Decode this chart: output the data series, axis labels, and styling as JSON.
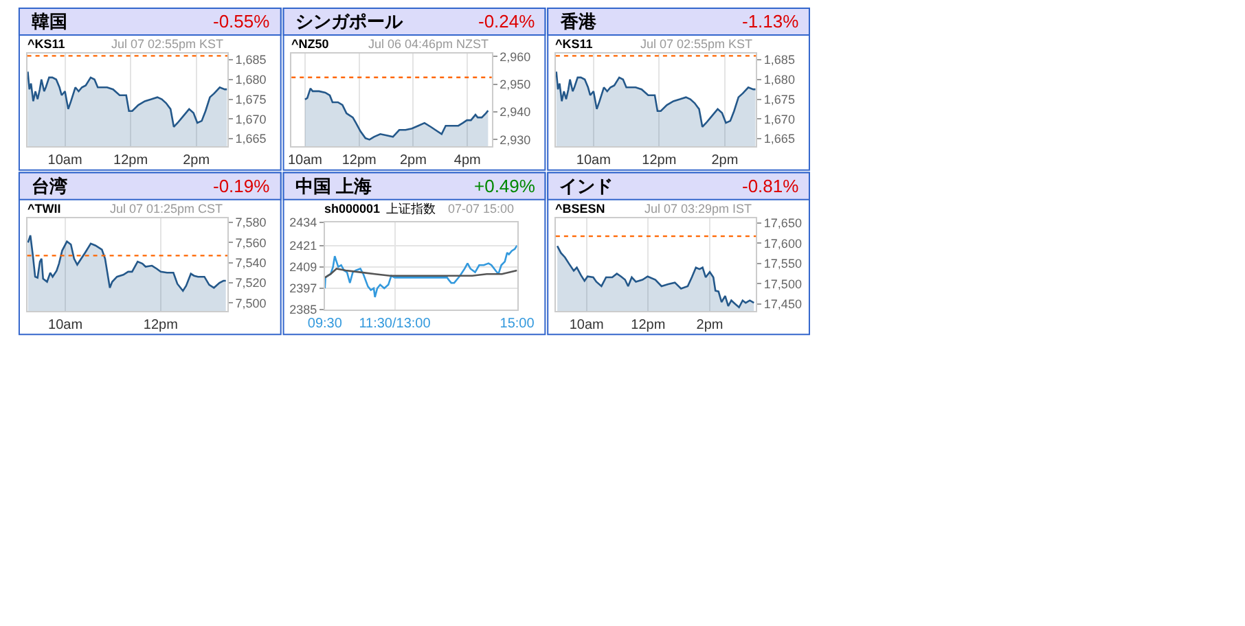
{
  "chart_data": [
    {
      "type": "area",
      "title": "韓国",
      "subtitle": "-0.55%",
      "annotations": [
        "^KS11",
        "Jul 07 02:55pm KST"
      ],
      "grid": "x",
      "xlim": [
        "--07-07T08:51",
        "--07-07T14:57"
      ],
      "xticks": [
        {
          "value": "--07-07T10:00",
          "label": "10am"
        },
        {
          "value": "--07-07T12:00",
          "label": "12pm"
        },
        {
          "value": "--07-07T14:00",
          "label": "2pm"
        }
      ],
      "ylim": [
        1663,
        1686.5
      ],
      "yticks": [
        {
          "value": 1665,
          "label": "1,665"
        },
        {
          "value": 1670,
          "label": "1,670"
        },
        {
          "value": 1675,
          "label": "1,675"
        },
        {
          "value": 1680,
          "label": "1,680"
        },
        {
          "value": 1685,
          "label": "1,685"
        }
      ],
      "ref_lines": [
        {
          "axis": "y",
          "value": 1686,
          "color": "#ff6600",
          "line_style": "dotted"
        }
      ],
      "series": [
        {
          "color": "#24588a",
          "x": [
            "--07-07T08:52",
            "--07-07T08:55",
            "--07-07T08:58",
            "--07-07T09:02",
            "--07-07T09:06",
            "--07-07T09:10",
            "--07-07T09:14",
            "--07-07T09:17",
            "--07-07T09:22",
            "--07-07T09:25",
            "--07-07T09:31",
            "--07-07T09:37",
            "--07-07T09:44",
            "--07-07T09:50",
            "--07-07T09:54",
            "--07-07T10:00",
            "--07-07T10:06",
            "--07-07T10:11",
            "--07-07T10:19",
            "--07-07T10:25",
            "--07-07T10:31",
            "--07-07T10:38",
            "--07-07T10:47",
            "--07-07T10:54",
            "--07-07T11:00",
            "--07-07T11:05",
            "--07-07T11:17",
            "--07-07T11:28",
            "--07-07T11:40",
            "--07-07T11:52",
            "--07-07T11:57",
            "--07-07T12:03",
            "--07-07T12:14",
            "--07-07T12:26",
            "--07-07T12:38",
            "--07-07T12:49",
            "--07-07T12:57",
            "--07-07T13:05",
            "--07-07T13:13",
            "--07-07T13:19",
            "--07-07T13:26",
            "--07-07T13:35",
            "--07-07T13:47",
            "--07-07T13:55",
            "--07-07T14:02",
            "--07-07T14:10",
            "--07-07T14:17",
            "--07-07T14:25",
            "--07-07T14:33",
            "--07-07T14:43",
            "--07-07T14:52",
            "--07-07T14:56"
          ],
          "values": [
            1682,
            1677.5,
            1679,
            1674.5,
            1677,
            1675,
            1677.5,
            1680,
            1677,
            1678,
            1680.5,
            1680.5,
            1680,
            1678,
            1676,
            1677,
            1672.5,
            1674.5,
            1678,
            1677,
            1678,
            1678.5,
            1680.5,
            1680,
            1678,
            1678,
            1678,
            1677.5,
            1676,
            1676,
            1672,
            1672,
            1673.5,
            1674.5,
            1675,
            1675.5,
            1675,
            1674,
            1672.5,
            1668,
            1669,
            1670.5,
            1672.5,
            1671.5,
            1669,
            1669.5,
            1672,
            1675.5,
            1676.5,
            1678,
            1677.5,
            1677.5
          ]
        }
      ]
    },
    {
      "type": "area",
      "title": "シンガポール",
      "subtitle": "-0.24%",
      "annotations": [
        "^NZ50",
        "Jul 06 04:46pm NZST"
      ],
      "grid": "x",
      "xlim": [
        "--07-06T09:30",
        "--07-06T16:54"
      ],
      "xticks": [
        {
          "value": "--07-06T10:00",
          "label": "10am"
        },
        {
          "value": "--07-06T12:00",
          "label": "12pm"
        },
        {
          "value": "--07-06T14:00",
          "label": "2pm"
        },
        {
          "value": "--07-06T16:00",
          "label": "4pm"
        }
      ],
      "ylim": [
        2927.5,
        2961
      ],
      "yticks": [
        {
          "value": 2930,
          "label": "2,930"
        },
        {
          "value": 2940,
          "label": "2,940"
        },
        {
          "value": 2950,
          "label": "2,950"
        },
        {
          "value": 2960,
          "label": "2,960"
        }
      ],
      "ref_lines": [
        {
          "axis": "y",
          "value": 2952.5,
          "color": "#ff6600",
          "line_style": "dotted"
        }
      ],
      "series": [
        {
          "color": "#24588a",
          "x": [
            "--07-06T10:00",
            "--07-06T10:05",
            "--07-06T10:12",
            "--07-06T10:17",
            "--07-06T10:31",
            "--07-06T10:45",
            "--07-06T10:55",
            "--07-06T11:01",
            "--07-06T11:13",
            "--07-06T11:23",
            "--07-06T11:32",
            "--07-06T11:46",
            "--07-06T11:53",
            "--07-06T12:03",
            "--07-06T12:14",
            "--07-06T12:23",
            "--07-06T12:33",
            "--07-06T12:47",
            "--07-06T13:01",
            "--07-06T13:15",
            "--07-06T13:29",
            "--07-06T13:43",
            "--07-06T13:57",
            "--07-06T14:11",
            "--07-06T14:25",
            "--07-06T14:40",
            "--07-06T14:49",
            "--07-06T15:03",
            "--07-06T15:12",
            "--07-06T15:26",
            "--07-06T15:40",
            "--07-06T15:50",
            "--07-06T15:59",
            "--07-06T16:08",
            "--07-06T16:18",
            "--07-06T16:23",
            "--07-06T16:32",
            "--07-06T16:41",
            "--07-06T16:46"
          ],
          "values": [
            2944.5,
            2945,
            2948.5,
            2947.5,
            2947.5,
            2947,
            2946,
            2943.5,
            2943.5,
            2942.5,
            2939.5,
            2938,
            2936,
            2933,
            2930.5,
            2930,
            2931,
            2932,
            2931.5,
            2931,
            2933.5,
            2933.5,
            2934,
            2935,
            2936,
            2934.5,
            2933.5,
            2932,
            2935,
            2935,
            2935,
            2936,
            2937,
            2937,
            2939,
            2938,
            2938,
            2939.5,
            2940.5
          ]
        }
      ]
    },
    {
      "type": "area",
      "title": "香港",
      "subtitle": "-1.13%",
      "annotations": [
        "^KS11",
        "Jul 07 02:55pm KST"
      ],
      "grid": "x",
      "xlim": [
        "--07-07T08:51",
        "--07-07T14:57"
      ],
      "xticks": [
        {
          "value": "--07-07T10:00",
          "label": "10am"
        },
        {
          "value": "--07-07T12:00",
          "label": "12pm"
        },
        {
          "value": "--07-07T14:00",
          "label": "2pm"
        }
      ],
      "ylim": [
        1663,
        1686.5
      ],
      "yticks": [
        {
          "value": 1665,
          "label": "1,665"
        },
        {
          "value": 1670,
          "label": "1,670"
        },
        {
          "value": 1675,
          "label": "1,675"
        },
        {
          "value": 1680,
          "label": "1,680"
        },
        {
          "value": 1685,
          "label": "1,685"
        }
      ],
      "ref_lines": [
        {
          "axis": "y",
          "value": 1686,
          "color": "#ff6600",
          "line_style": "dotted"
        }
      ],
      "series": [
        {
          "color": "#24588a",
          "x": [
            "--07-07T08:52",
            "--07-07T08:55",
            "--07-07T08:58",
            "--07-07T09:02",
            "--07-07T09:06",
            "--07-07T09:10",
            "--07-07T09:14",
            "--07-07T09:17",
            "--07-07T09:22",
            "--07-07T09:25",
            "--07-07T09:31",
            "--07-07T09:37",
            "--07-07T09:44",
            "--07-07T09:50",
            "--07-07T09:54",
            "--07-07T10:00",
            "--07-07T10:06",
            "--07-07T10:11",
            "--07-07T10:19",
            "--07-07T10:25",
            "--07-07T10:31",
            "--07-07T10:38",
            "--07-07T10:47",
            "--07-07T10:54",
            "--07-07T11:00",
            "--07-07T11:05",
            "--07-07T11:17",
            "--07-07T11:28",
            "--07-07T11:40",
            "--07-07T11:52",
            "--07-07T11:57",
            "--07-07T12:03",
            "--07-07T12:14",
            "--07-07T12:26",
            "--07-07T12:38",
            "--07-07T12:49",
            "--07-07T12:57",
            "--07-07T13:05",
            "--07-07T13:13",
            "--07-07T13:19",
            "--07-07T13:26",
            "--07-07T13:35",
            "--07-07T13:47",
            "--07-07T13:55",
            "--07-07T14:02",
            "--07-07T14:10",
            "--07-07T14:17",
            "--07-07T14:25",
            "--07-07T14:33",
            "--07-07T14:43",
            "--07-07T14:52",
            "--07-07T14:56"
          ],
          "values": [
            1682,
            1677.5,
            1679,
            1674.5,
            1677,
            1675,
            1677.5,
            1680,
            1677,
            1678,
            1680.5,
            1680.5,
            1680,
            1678,
            1676,
            1677,
            1672.5,
            1674.5,
            1678,
            1677,
            1678,
            1678.5,
            1680.5,
            1680,
            1678,
            1678,
            1678,
            1677.5,
            1676,
            1676,
            1672,
            1672,
            1673.5,
            1674.5,
            1675,
            1675.5,
            1675,
            1674,
            1672.5,
            1668,
            1669,
            1670.5,
            1672.5,
            1671.5,
            1669,
            1669.5,
            1672,
            1675.5,
            1676.5,
            1678,
            1677.5,
            1677.5
          ]
        }
      ]
    },
    {
      "type": "area",
      "title": "台湾",
      "subtitle": "-0.19%",
      "annotations": [
        "^TWII",
        "Jul 07 01:25pm CST"
      ],
      "grid": "x",
      "xlim": [
        "--07-07T09:12",
        "--07-07T13:24"
      ],
      "xticks": [
        {
          "value": "--07-07T10:00",
          "label": "10am"
        },
        {
          "value": "--07-07T12:00",
          "label": "12pm"
        }
      ],
      "ylim": [
        7492,
        7584
      ],
      "yticks": [
        {
          "value": 7500,
          "label": "7,500"
        },
        {
          "value": 7520,
          "label": "7,520"
        },
        {
          "value": 7540,
          "label": "7,540"
        },
        {
          "value": 7560,
          "label": "7,560"
        },
        {
          "value": 7580,
          "label": "7,580"
        }
      ],
      "ref_lines": [
        {
          "axis": "y",
          "value": 7547,
          "color": "#ff6600",
          "line_style": "dotted"
        }
      ],
      "series": [
        {
          "color": "#24588a",
          "x": [
            "--07-07T09:13",
            "--07-07T09:16",
            "--07-07T09:19",
            "--07-07T09:22",
            "--07-07T09:25",
            "--07-07T09:28",
            "--07-07T09:30",
            "--07-07T09:32",
            "--07-07T09:37",
            "--07-07T09:41",
            "--07-07T09:44",
            "--07-07T09:49",
            "--07-07T09:52",
            "--07-07T09:56",
            "--07-07T10:02",
            "--07-07T10:07",
            "--07-07T10:11",
            "--07-07T10:15",
            "--07-07T10:20",
            "--07-07T10:25",
            "--07-07T10:32",
            "--07-07T10:38",
            "--07-07T10:46",
            "--07-07T10:50",
            "--07-07T10:56",
            "--07-07T10:59",
            "--07-07T11:05",
            "--07-07T11:13",
            "--07-07T11:19",
            "--07-07T11:24",
            "--07-07T11:31",
            "--07-07T11:37",
            "--07-07T11:41",
            "--07-07T11:49",
            "--07-07T11:55",
            "--07-07T12:00",
            "--07-07T12:08",
            "--07-07T12:16",
            "--07-07T12:21",
            "--07-07T12:28",
            "--07-07T12:32",
            "--07-07T12:38",
            "--07-07T12:42",
            "--07-07T12:47",
            "--07-07T12:55",
            "--07-07T13:01",
            "--07-07T13:07",
            "--07-07T13:14",
            "--07-07T13:19",
            "--07-07T13:22"
          ],
          "values": [
            7560,
            7567,
            7548,
            7526,
            7525,
            7541,
            7544,
            7524,
            7521,
            7530,
            7526,
            7532,
            7539,
            7552,
            7561,
            7558,
            7544,
            7538,
            7544,
            7550,
            7559,
            7557,
            7553,
            7544,
            7515,
            7521,
            7526,
            7528,
            7531,
            7531,
            7541,
            7539,
            7536,
            7537,
            7534,
            7531,
            7530,
            7530,
            7519,
            7512,
            7517,
            7529,
            7527,
            7526,
            7526,
            7518,
            7515,
            7520,
            7522,
            7522
          ]
        }
      ]
    },
    {
      "type": "line",
      "title": "中国 上海",
      "subtitle": "+0.49%",
      "annotations": [
        "sh000001",
        "上证指数",
        "07-07 15:00"
      ],
      "grid": true,
      "xlim": [
        "--07-07T09:30",
        "--07-07T15:00"
      ],
      "xticks": [
        {
          "value": "--07-07T09:30",
          "label": "09:30"
        },
        {
          "value": "--07-07T11:30",
          "label": "11:30/13:00"
        },
        {
          "value": "--07-07T15:00",
          "label": "15:00"
        }
      ],
      "ylim": [
        2385,
        2434
      ],
      "yticks": [
        2385,
        2397,
        2409,
        2421,
        2434
      ],
      "series": [
        {
          "color": "#3399dd",
          "x": [
            "--07-07T09:30",
            "--07-07T09:31",
            "--07-07T09:35",
            "--07-07T09:40",
            "--07-07T09:44",
            "--07-07T09:47",
            "--07-07T09:50",
            "--07-07T09:53",
            "--07-07T09:58",
            "--07-07T10:03",
            "--07-07T10:08",
            "--07-07T10:13",
            "--07-07T10:18",
            "--07-07T10:23",
            "--07-07T10:31",
            "--07-07T10:36",
            "--07-07T10:44",
            "--07-07T10:49",
            "--07-07T10:54",
            "--07-07T10:56",
            "--07-07T11:00",
            "--07-07T11:05",
            "--07-07T11:12",
            "--07-07T11:19",
            "--07-07T11:24",
            "--07-07T11:30",
            "--07-07T13:00",
            "--07-07T13:02",
            "--07-07T13:07",
            "--07-07T13:12",
            "--07-07T13:17",
            "--07-07T13:22",
            "--07-07T13:30",
            "--07-07T13:35",
            "--07-07T13:40",
            "--07-07T13:48",
            "--07-07T13:55",
            "--07-07T14:03",
            "--07-07T14:11",
            "--07-07T14:16",
            "--07-07T14:23",
            "--07-07T14:28",
            "--07-07T14:33",
            "--07-07T14:39",
            "--07-07T14:43",
            "--07-07T14:46",
            "--07-07T14:51",
            "--07-07T14:56",
            "--07-07T15:00"
          ],
          "values": [
            2397,
            2403,
            2404,
            2405,
            2409,
            2415,
            2412,
            2409,
            2410,
            2407,
            2406,
            2400,
            2406,
            2407,
            2408,
            2405,
            2398,
            2396,
            2397,
            2392,
            2397,
            2399,
            2397,
            2399,
            2404,
            2403,
            2403,
            2402,
            2400,
            2400,
            2402,
            2404,
            2408,
            2411,
            2408,
            2406,
            2410,
            2410,
            2411,
            2410,
            2407,
            2405,
            2410,
            2412,
            2417,
            2416,
            2418,
            2419,
            2421
          ]
        },
        {
          "color": "#555555",
          "x": [
            "--07-07T09:30",
            "--07-07T09:40",
            "--07-07T09:50",
            "--07-07T10:06",
            "--07-07T10:31",
            "--07-07T10:56",
            "--07-07T11:22",
            "--07-07T11:30",
            "--07-07T13:00",
            "--07-07T13:17",
            "--07-07T13:43",
            "--07-07T14:08",
            "--07-07T14:34",
            "--07-07T15:00"
          ],
          "values": [
            2403,
            2405,
            2408,
            2407,
            2406,
            2405,
            2404,
            2404,
            2404,
            2404,
            2404,
            2405,
            2405,
            2407
          ]
        }
      ]
    },
    {
      "type": "area",
      "title": "インド",
      "subtitle": "-0.81%",
      "annotations": [
        "^BSESN",
        "Jul 07 03:29pm IST"
      ],
      "grid": "x",
      "xlim": [
        "--07-07T09:00",
        "--07-07T15:30"
      ],
      "xticks": [
        {
          "value": "--07-07T10:00",
          "label": "10am"
        },
        {
          "value": "--07-07T12:00",
          "label": "12pm"
        },
        {
          "value": "--07-07T14:00",
          "label": "2pm"
        }
      ],
      "ylim": [
        17433,
        17661
      ],
      "yticks": [
        {
          "value": 17450,
          "label": "17,450"
        },
        {
          "value": 17500,
          "label": "17,500"
        },
        {
          "value": 17550,
          "label": "17,550"
        },
        {
          "value": 17600,
          "label": "17,600"
        },
        {
          "value": 17650,
          "label": "17,650"
        }
      ],
      "ref_lines": [
        {
          "axis": "y",
          "value": 17617,
          "color": "#ff6600",
          "line_style": "dotted"
        }
      ],
      "series": [
        {
          "color": "#24588a",
          "x": [
            "--07-07T09:03",
            "--07-07T09:10",
            "--07-07T09:18",
            "--07-07T09:26",
            "--07-07T09:35",
            "--07-07T09:41",
            "--07-07T09:49",
            "--07-07T09:56",
            "--07-07T10:02",
            "--07-07T10:13",
            "--07-07T10:19",
            "--07-07T10:29",
            "--07-07T10:38",
            "--07-07T10:50",
            "--07-07T10:59",
            "--07-07T11:07",
            "--07-07T11:15",
            "--07-07T11:21",
            "--07-07T11:28",
            "--07-07T11:36",
            "--07-07T11:49",
            "--07-07T11:59",
            "--07-07T12:14",
            "--07-07T12:26",
            "--07-07T12:39",
            "--07-07T12:52",
            "--07-07T13:04",
            "--07-07T13:17",
            "--07-07T13:25",
            "--07-07T13:33",
            "--07-07T13:40",
            "--07-07T13:46",
            "--07-07T13:52",
            "--07-07T14:00",
            "--07-07T14:07",
            "--07-07T14:11",
            "--07-07T14:17",
            "--07-07T14:23",
            "--07-07T14:30",
            "--07-07T14:36",
            "--07-07T14:42",
            "--07-07T14:49",
            "--07-07T14:57",
            "--07-07T15:04",
            "--07-07T15:10",
            "--07-07T15:18",
            "--07-07T15:26"
          ],
          "values": [
            17593,
            17576,
            17565,
            17549,
            17532,
            17540,
            17521,
            17507,
            17518,
            17516,
            17505,
            17494,
            17516,
            17516,
            17525,
            17518,
            17510,
            17494,
            17516,
            17505,
            17510,
            17518,
            17510,
            17494,
            17499,
            17503,
            17488,
            17494,
            17516,
            17540,
            17536,
            17540,
            17516,
            17529,
            17516,
            17483,
            17481,
            17455,
            17470,
            17445,
            17459,
            17451,
            17442,
            17459,
            17453,
            17459,
            17453
          ]
        }
      ]
    }
  ]
}
